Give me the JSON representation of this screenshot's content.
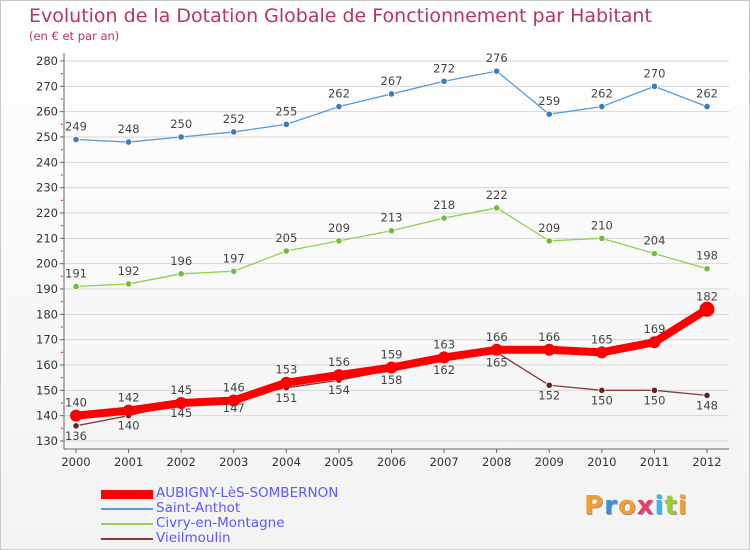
{
  "title": "Evolution de la Dotation Globale de Fonctionnement par Habitant",
  "subtitle": "(en € et par an)",
  "brand": {
    "text": "Proxiti",
    "letter_colors": [
      "#f0a030",
      "#3c8fd6",
      "#f0a030",
      "#e63c6e",
      "#3cb4e6",
      "#9acd32",
      "#f0a030"
    ]
  },
  "colors": {
    "title": "#b8336a",
    "legend_text": "#5a5aff",
    "axis": "#666666",
    "tick_label": "#333333",
    "grid": "#d6d6d6",
    "value_label": "#444444"
  },
  "chart_data": {
    "type": "line",
    "x": [
      "2000",
      "2001",
      "2002",
      "2003",
      "2004",
      "2005",
      "2006",
      "2007",
      "2008",
      "2009",
      "2010",
      "2011",
      "2012"
    ],
    "ylim": [
      130,
      280
    ],
    "yticks": [
      130,
      140,
      150,
      160,
      170,
      180,
      190,
      200,
      210,
      220,
      230,
      240,
      250,
      260,
      270,
      280
    ],
    "grid": "horizontal",
    "legend_position": "bottom-left",
    "series": [
      {
        "name": "AUBIGNY-LèS-SOMBERNON",
        "color": "#ff0000",
        "marker_color": "#ff0000",
        "width": 8,
        "values": [
          140,
          142,
          145,
          146,
          153,
          156,
          159,
          163,
          166,
          166,
          165,
          169,
          182
        ],
        "labels": [
          "140",
          "142",
          "145",
          "146",
          "153",
          "156",
          "159",
          "163",
          "166",
          "166",
          "165",
          "169",
          "182"
        ]
      },
      {
        "name": "Saint-Anthot",
        "color": "#5b9bd5",
        "marker_color": "#3a7cc0",
        "width": 1.3,
        "values": [
          249,
          248,
          250,
          252,
          255,
          262,
          267,
          272,
          276,
          259,
          262,
          270,
          262
        ],
        "labels": [
          "249",
          "248",
          "250",
          "252",
          "255",
          "262",
          "267",
          "272",
          "276",
          "259",
          "262",
          "270",
          "262"
        ]
      },
      {
        "name": "Civry-en-Montagne",
        "color": "#92d050",
        "marker_color": "#6cc03c",
        "width": 1.3,
        "values": [
          191,
          192,
          196,
          197,
          205,
          209,
          213,
          218,
          222,
          209,
          210,
          204,
          198
        ],
        "labels": [
          "191",
          "192",
          "196",
          "197",
          "205",
          "209",
          "213",
          "218",
          "222",
          "209",
          "210",
          "204",
          "198"
        ]
      },
      {
        "name": "Vieilmoulin",
        "color": "#8b3a3a",
        "marker_color": "#6b1f1f",
        "width": 1.3,
        "values": [
          136,
          140,
          145,
          147,
          151,
          154,
          158,
          162,
          165,
          152,
          150,
          150,
          148
        ],
        "labels": [
          "136",
          "140",
          "145",
          "147",
          "151",
          "154",
          "158",
          "162",
          "165",
          "152",
          "150",
          "150",
          "148"
        ]
      }
    ]
  }
}
